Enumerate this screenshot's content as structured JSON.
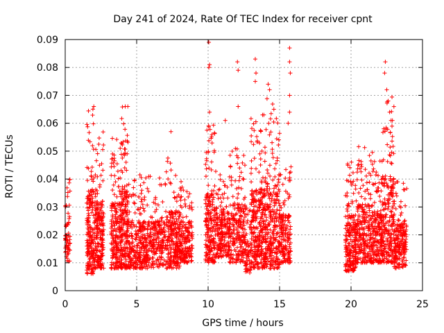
{
  "chart_data": {
    "type": "scatter",
    "title": "Day 241 of 2024, Rate Of TEC Index for receiver cpnt",
    "xlabel": "GPS time / hours",
    "ylabel": "ROTI / TECUs",
    "xlim": [
      0,
      25
    ],
    "ylim": [
      0,
      0.09
    ],
    "xticks": [
      0,
      5,
      10,
      15,
      20,
      25
    ],
    "xtick_labels": [
      "0",
      "5",
      "10",
      "15",
      "20",
      "25"
    ],
    "yticks": [
      0,
      0.01,
      0.02,
      0.03,
      0.04,
      0.05,
      0.06,
      0.07,
      0.08,
      0.09
    ],
    "ytick_labels": [
      "0",
      "0.01",
      "0.02",
      "0.03",
      "0.04",
      "0.05",
      "0.06",
      "0.07",
      "0.08",
      "0.09"
    ],
    "grid": true,
    "marker": "+",
    "series_color": "#ff0000",
    "point_clusters": [
      {
        "x_start": 0.0,
        "x_end": 0.35,
        "y_min": 0.01,
        "y_max": 0.04,
        "count": 60
      },
      {
        "x_start": 1.5,
        "x_end": 2.0,
        "y_min": 0.006,
        "y_max": 0.067,
        "count": 180
      },
      {
        "x_start": 2.0,
        "x_end": 2.7,
        "y_min": 0.008,
        "y_max": 0.057,
        "count": 220
      },
      {
        "x_start": 3.2,
        "x_end": 4.0,
        "y_min": 0.008,
        "y_max": 0.055,
        "count": 220
      },
      {
        "x_start": 3.9,
        "x_end": 4.4,
        "y_min": 0.008,
        "y_max": 0.067,
        "count": 160
      },
      {
        "x_start": 4.4,
        "x_end": 5.5,
        "y_min": 0.008,
        "y_max": 0.042,
        "count": 220
      },
      {
        "x_start": 5.5,
        "x_end": 7.0,
        "y_min": 0.008,
        "y_max": 0.042,
        "count": 260
      },
      {
        "x_start": 7.0,
        "x_end": 8.0,
        "y_min": 0.008,
        "y_max": 0.049,
        "count": 220
      },
      {
        "x_start": 8.0,
        "x_end": 8.9,
        "y_min": 0.01,
        "y_max": 0.04,
        "count": 180
      },
      {
        "x_start": 9.8,
        "x_end": 10.5,
        "y_min": 0.01,
        "y_max": 0.06,
        "count": 200
      },
      {
        "x_start": 10.5,
        "x_end": 11.5,
        "y_min": 0.012,
        "y_max": 0.045,
        "count": 200
      },
      {
        "x_start": 11.5,
        "x_end": 12.6,
        "y_min": 0.01,
        "y_max": 0.052,
        "count": 220
      },
      {
        "x_start": 12.6,
        "x_end": 13.0,
        "y_min": 0.006,
        "y_max": 0.03,
        "count": 60
      },
      {
        "x_start": 13.0,
        "x_end": 14.0,
        "y_min": 0.008,
        "y_max": 0.065,
        "count": 300
      },
      {
        "x_start": 14.0,
        "x_end": 15.0,
        "y_min": 0.008,
        "y_max": 0.07,
        "count": 260
      },
      {
        "x_start": 15.0,
        "x_end": 15.8,
        "y_min": 0.01,
        "y_max": 0.045,
        "count": 160
      },
      {
        "x_start": 19.6,
        "x_end": 20.4,
        "y_min": 0.007,
        "y_max": 0.048,
        "count": 220
      },
      {
        "x_start": 20.4,
        "x_end": 21.5,
        "y_min": 0.01,
        "y_max": 0.052,
        "count": 240
      },
      {
        "x_start": 21.5,
        "x_end": 22.2,
        "y_min": 0.01,
        "y_max": 0.047,
        "count": 180
      },
      {
        "x_start": 22.2,
        "x_end": 23.0,
        "y_min": 0.01,
        "y_max": 0.072,
        "count": 220
      },
      {
        "x_start": 23.0,
        "x_end": 23.9,
        "y_min": 0.008,
        "y_max": 0.04,
        "count": 200
      }
    ],
    "outliers": [
      {
        "x": 10.05,
        "y": 0.089
      },
      {
        "x": 10.1,
        "y": 0.081
      },
      {
        "x": 10.05,
        "y": 0.08
      },
      {
        "x": 10.1,
        "y": 0.064
      },
      {
        "x": 12.05,
        "y": 0.082
      },
      {
        "x": 12.1,
        "y": 0.079
      },
      {
        "x": 12.1,
        "y": 0.066
      },
      {
        "x": 13.3,
        "y": 0.083
      },
      {
        "x": 13.35,
        "y": 0.078
      },
      {
        "x": 13.3,
        "y": 0.075
      },
      {
        "x": 14.2,
        "y": 0.074
      },
      {
        "x": 14.3,
        "y": 0.072
      },
      {
        "x": 15.7,
        "y": 0.087
      },
      {
        "x": 15.7,
        "y": 0.082
      },
      {
        "x": 15.75,
        "y": 0.078
      },
      {
        "x": 15.7,
        "y": 0.07
      },
      {
        "x": 15.7,
        "y": 0.064
      },
      {
        "x": 15.6,
        "y": 0.06
      },
      {
        "x": 22.4,
        "y": 0.082
      },
      {
        "x": 22.35,
        "y": 0.078
      },
      {
        "x": 22.5,
        "y": 0.072
      },
      {
        "x": 22.6,
        "y": 0.068
      },
      {
        "x": 22.7,
        "y": 0.064
      },
      {
        "x": 22.8,
        "y": 0.061
      },
      {
        "x": 2.0,
        "y": 0.066
      },
      {
        "x": 4.2,
        "y": 0.066
      },
      {
        "x": 7.4,
        "y": 0.057
      },
      {
        "x": 11.2,
        "y": 0.061
      },
      {
        "x": 13.9,
        "y": 0.063
      },
      {
        "x": 14.6,
        "y": 0.065
      }
    ]
  }
}
